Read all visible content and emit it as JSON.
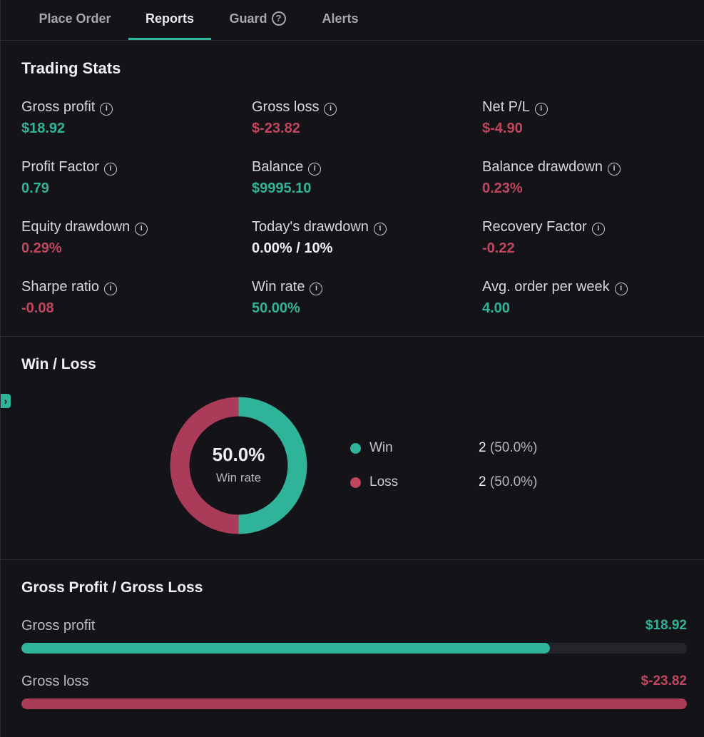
{
  "tabs": [
    {
      "label": "Place Order"
    },
    {
      "label": "Reports"
    },
    {
      "label": "Guard"
    },
    {
      "label": "Alerts"
    }
  ],
  "trading_stats": {
    "title": "Trading Stats",
    "items": [
      {
        "label": "Gross profit",
        "value": "$18.92"
      },
      {
        "label": "Gross loss",
        "value": "$-23.82"
      },
      {
        "label": "Net P/L",
        "value": "$-4.90"
      },
      {
        "label": "Profit Factor",
        "value": "0.79"
      },
      {
        "label": "Balance",
        "value": "$9995.10"
      },
      {
        "label": "Balance drawdown",
        "value": "0.23%"
      },
      {
        "label": "Equity drawdown",
        "value": "0.29%"
      },
      {
        "label": "Today's drawdown",
        "value": "0.00% / 10%"
      },
      {
        "label": "Recovery Factor",
        "value": "-0.22"
      },
      {
        "label": "Sharpe ratio",
        "value": "-0.08"
      },
      {
        "label": "Win rate",
        "value": "50.00%"
      },
      {
        "label": "Avg. order per week",
        "value": "4.00"
      }
    ]
  },
  "win_loss": {
    "title": "Win / Loss",
    "center_value": "50.0%",
    "center_label": "Win rate",
    "legend": [
      {
        "label": "Win",
        "count": "2",
        "pct": "(50.0%)"
      },
      {
        "label": "Loss",
        "count": "2",
        "pct": "(50.0%)"
      }
    ]
  },
  "gross_pl": {
    "title": "Gross Profit / Gross Loss",
    "rows": [
      {
        "label": "Gross profit",
        "value": "$18.92"
      },
      {
        "label": "Gross loss",
        "value": "$-23.82"
      }
    ]
  },
  "colors": {
    "accent": "#2fb399",
    "positive": "#31b397",
    "negative": "#c0455f",
    "loss_segment": "#ab3c59"
  },
  "chart_data": [
    {
      "type": "pie",
      "categories": [
        "Win",
        "Loss"
      ],
      "values": [
        2,
        2
      ],
      "title": "Win / Loss"
    },
    {
      "type": "bar",
      "categories": [
        "Gross profit",
        "Gross loss"
      ],
      "values": [
        18.92,
        -23.82
      ],
      "title": "Gross Profit / Gross Loss"
    }
  ]
}
